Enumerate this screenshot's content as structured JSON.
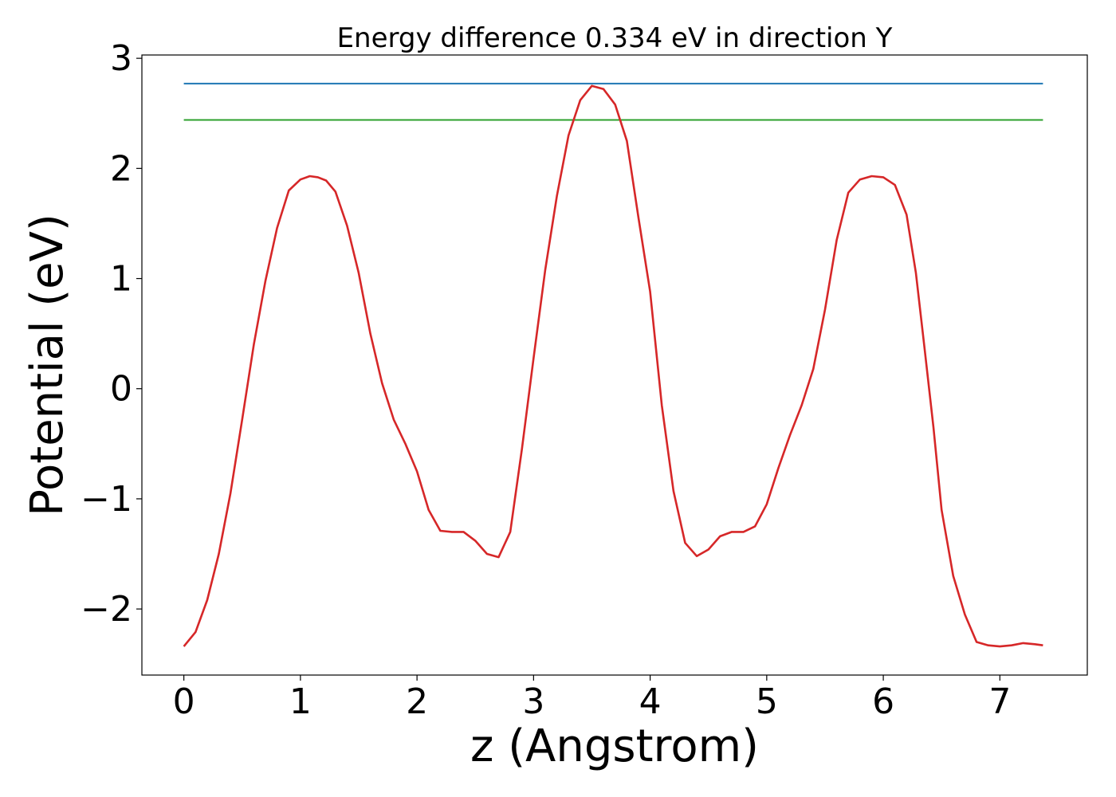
{
  "chart_data": {
    "type": "line",
    "title": "Energy difference 0.334 eV in direction Y",
    "xlabel": "z (Angstrom)",
    "ylabel": "Potential (eV)",
    "xlim": [
      -0.36,
      7.75
    ],
    "ylim": [
      -2.6,
      3.03
    ],
    "xticks": [
      0,
      1,
      2,
      3,
      4,
      5,
      6,
      7
    ],
    "xtick_labels": [
      "0",
      "1",
      "2",
      "3",
      "4",
      "5",
      "6",
      "7"
    ],
    "yticks": [
      -2,
      -1,
      0,
      1,
      2,
      3
    ],
    "ytick_labels": [
      "−2",
      "−1",
      "0",
      "1",
      "2",
      "3"
    ],
    "grid": false,
    "series": [
      {
        "color": "#1f77b4",
        "x": [
          0,
          7.37
        ],
        "y": [
          2.77,
          2.77
        ]
      },
      {
        "color": "#2ca02c",
        "x": [
          0,
          7.37
        ],
        "y": [
          2.44,
          2.44
        ]
      },
      {
        "color": "#d62728",
        "x": [
          0,
          0.1,
          0.2,
          0.3,
          0.4,
          0.5,
          0.6,
          0.7,
          0.8,
          0.9,
          1.0,
          1.08,
          1.15,
          1.22,
          1.3,
          1.4,
          1.5,
          1.6,
          1.7,
          1.8,
          1.9,
          2.0,
          2.1,
          2.2,
          2.3,
          2.4,
          2.5,
          2.6,
          2.7,
          2.8,
          2.9,
          3.0,
          3.1,
          3.2,
          3.3,
          3.4,
          3.5,
          3.6,
          3.7,
          3.8,
          3.9,
          4.0,
          4.1,
          4.2,
          4.3,
          4.4,
          4.5,
          4.6,
          4.7,
          4.8,
          4.9,
          5.0,
          5.1,
          5.2,
          5.3,
          5.4,
          5.5,
          5.6,
          5.7,
          5.8,
          5.9,
          6.0,
          6.1,
          6.2,
          6.28,
          6.35,
          6.43,
          6.5,
          6.6,
          6.7,
          6.8,
          6.9,
          7.0,
          7.1,
          7.2,
          7.3,
          7.37
        ],
        "y": [
          -2.34,
          -2.21,
          -1.92,
          -1.5,
          -0.95,
          -0.28,
          0.4,
          0.98,
          1.46,
          1.8,
          1.9,
          1.93,
          1.92,
          1.89,
          1.79,
          1.48,
          1.05,
          0.5,
          0.05,
          -0.28,
          -0.5,
          -0.75,
          -1.1,
          -1.29,
          -1.3,
          -1.3,
          -1.38,
          -1.5,
          -1.53,
          -1.3,
          -0.55,
          0.28,
          1.08,
          1.75,
          2.3,
          2.62,
          2.75,
          2.72,
          2.58,
          2.25,
          1.55,
          0.88,
          -0.15,
          -0.93,
          -1.4,
          -1.52,
          -1.46,
          -1.34,
          -1.3,
          -1.3,
          -1.25,
          -1.05,
          -0.72,
          -0.42,
          -0.15,
          0.18,
          0.72,
          1.35,
          1.78,
          1.9,
          1.93,
          1.92,
          1.85,
          1.58,
          1.05,
          0.4,
          -0.35,
          -1.1,
          -1.7,
          -2.05,
          -2.3,
          -2.33,
          -2.34,
          -2.33,
          -2.31,
          -2.32,
          -2.33
        ]
      }
    ]
  }
}
